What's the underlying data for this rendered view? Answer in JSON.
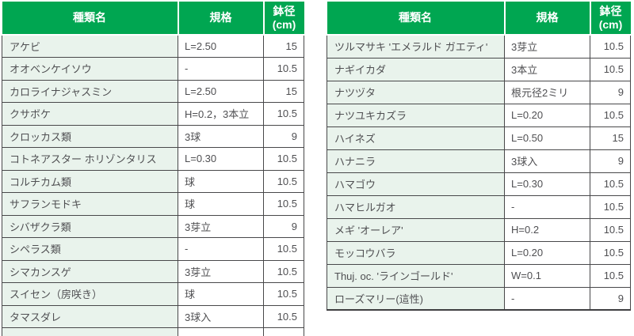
{
  "colors": {
    "header_green": "#00a651",
    "name_cell_green": "#e9f3ec",
    "grid_border": "#48484a",
    "body_text": "#4f4f52",
    "header_text": "#ffffff"
  },
  "tables": {
    "left": {
      "header": {
        "name": "種類名",
        "spec": "規格",
        "pot_line1": "鉢径",
        "pot_line2": "(cm)"
      },
      "rows": [
        {
          "name": "アケビ",
          "spec": "L=2.50",
          "pot": "15"
        },
        {
          "name": "オオベンケイソウ",
          "spec": "-",
          "pot": "10.5"
        },
        {
          "name": "カロライナジャスミン",
          "spec": "L=2.50",
          "pot": "15"
        },
        {
          "name": "クサボケ",
          "spec": "H=0.2，3本立",
          "pot": "10.5"
        },
        {
          "name": "クロッカス類",
          "spec": "3球",
          "pot": "9"
        },
        {
          "name": "コトネアスター ホリゾンタリス",
          "spec": "L=0.30",
          "pot": "10.5"
        },
        {
          "name": "コルチカム類",
          "spec": "球",
          "pot": "10.5"
        },
        {
          "name": "サフランモドキ",
          "spec": "球",
          "pot": "10.5"
        },
        {
          "name": "シバザクラ類",
          "spec": "3芽立",
          "pot": "9"
        },
        {
          "name": "シペラス類",
          "spec": "-",
          "pot": "10.5"
        },
        {
          "name": "シマカンスゲ",
          "spec": "3芽立",
          "pot": "10.5"
        },
        {
          "name": "スイセン（房咲き）",
          "spec": "球",
          "pot": "10.5"
        },
        {
          "name": "タマスダレ",
          "spec": "3球入",
          "pot": "10.5"
        }
      ],
      "partial_row_visible": true
    },
    "right": {
      "header": {
        "name": "種類名",
        "spec": "規格",
        "pot_line1": "鉢径",
        "pot_line2": "(cm)"
      },
      "rows": [
        {
          "name": "ツルマサキ 'エメラルド ガエティ'",
          "spec": "3芽立",
          "pot": "10.5"
        },
        {
          "name": "ナギイカダ",
          "spec": "3本立",
          "pot": "10.5"
        },
        {
          "name": "ナツヅタ",
          "spec": "根元径2ミリ",
          "pot": "9"
        },
        {
          "name": "ナツユキカズラ",
          "spec": "L=0.20",
          "pot": "10.5"
        },
        {
          "name": "ハイネズ",
          "spec": "L=0.50",
          "pot": "15"
        },
        {
          "name": "ハナニラ",
          "spec": "3球入",
          "pot": "9"
        },
        {
          "name": "ハマゴウ",
          "spec": "L=0.30",
          "pot": "10.5"
        },
        {
          "name": "ハマヒルガオ",
          "spec": "-",
          "pot": "10.5"
        },
        {
          "name": "メギ 'オーレア'",
          "spec": "H=0.2",
          "pot": "10.5"
        },
        {
          "name": "モッコウバラ",
          "spec": "L=0.20",
          "pot": "10.5"
        },
        {
          "name": "Thuj. oc. 'ラインゴールド'",
          "spec": "W=0.1",
          "pot": "10.5"
        },
        {
          "name": "ローズマリー(這性)",
          "spec": "-",
          "pot": "9"
        }
      ],
      "partial_row_visible": false
    }
  }
}
